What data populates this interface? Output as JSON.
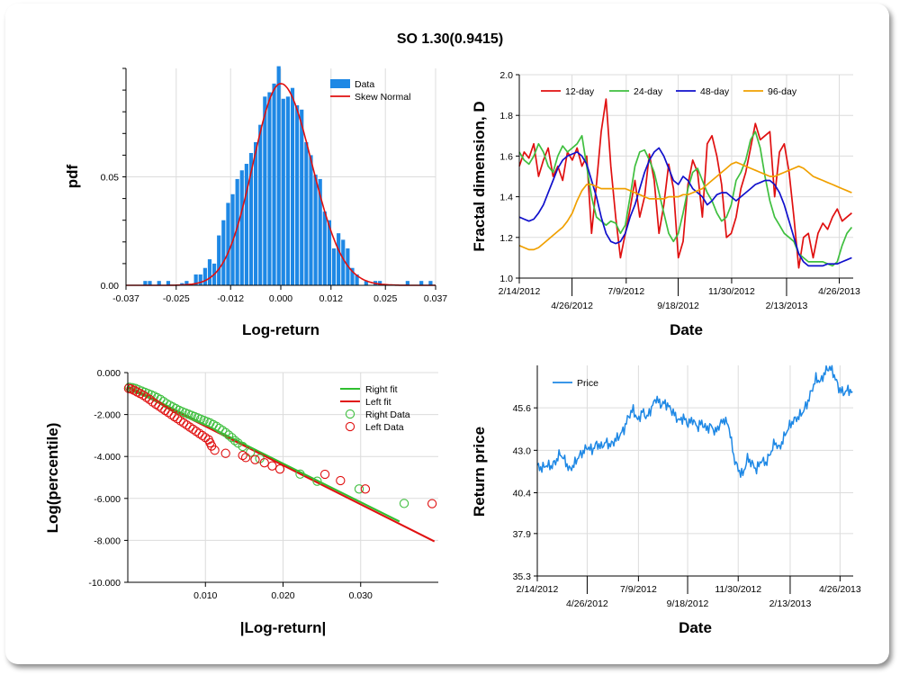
{
  "title": "SO 1.30(0.9415)",
  "chart_data": [
    {
      "id": "histogram",
      "type": "bar",
      "xlabel": "Log-return",
      "ylabel": "pdf",
      "xlim": [
        -0.037,
        0.037
      ],
      "ylim": [
        0,
        0.1
      ],
      "xticks": [
        -0.037,
        -0.025,
        -0.012,
        0.0,
        0.012,
        0.025,
        0.037
      ],
      "xtick_labels": [
        "-0.037",
        "-0.025",
        "-0.012",
        "0.000",
        "0.012",
        "0.025",
        "0.037"
      ],
      "yticks": [
        0,
        0.05
      ],
      "ytick_labels": [
        "0.00",
        "0.05"
      ],
      "legend": [
        "Data",
        "Skew Normal"
      ],
      "legend_position": "top-right",
      "bin_width": 0.0011,
      "bin_centers": [
        -0.0324,
        -0.0313,
        -0.0291,
        -0.0269,
        -0.0236,
        -0.0225,
        -0.0203,
        -0.0192,
        -0.0181,
        -0.017,
        -0.0159,
        -0.0148,
        -0.0137,
        -0.0126,
        -0.0115,
        -0.0104,
        -0.0093,
        -0.0082,
        -0.0071,
        -0.006,
        -0.0049,
        -0.0038,
        -0.0027,
        -0.0016,
        -0.0005,
        0.0006,
        0.0017,
        0.0028,
        0.0039,
        0.005,
        0.0061,
        0.0072,
        0.0083,
        0.0094,
        0.0105,
        0.0116,
        0.0127,
        0.0138,
        0.0149,
        0.016,
        0.0171,
        0.0182,
        0.0204,
        0.0226,
        0.0237,
        0.0303,
        0.0336,
        0.0358
      ],
      "values": [
        0.002,
        0.002,
        0.002,
        0.002,
        0.001,
        0.002,
        0.005,
        0.005,
        0.008,
        0.012,
        0.01,
        0.023,
        0.03,
        0.038,
        0.042,
        0.049,
        0.053,
        0.056,
        0.061,
        0.066,
        0.074,
        0.087,
        0.089,
        0.093,
        0.101,
        0.086,
        0.087,
        0.091,
        0.083,
        0.081,
        0.066,
        0.06,
        0.051,
        0.049,
        0.034,
        0.03,
        0.017,
        0.024,
        0.021,
        0.017,
        0.008,
        0.005,
        0.002,
        0.002,
        0.002,
        0.002,
        0.002,
        0.002
      ],
      "fit": {
        "name": "Skew Normal",
        "mode": 0.0,
        "peak": 0.093,
        "sigma_left": 0.0066,
        "sigma_right": 0.0074
      }
    },
    {
      "id": "fractal",
      "type": "line",
      "xlabel": "Date",
      "ylabel": "Fractal dimension, D",
      "ylim": [
        1.0,
        2.0
      ],
      "yticks": [
        1.0,
        1.2,
        1.4,
        1.6,
        1.8,
        2.0
      ],
      "ytick_labels": [
        "1.0",
        "1.2",
        "1.4",
        "1.6",
        "1.8",
        "2.0"
      ],
      "xlim": [
        "2012-02-14",
        "2013-05-15"
      ],
      "xticks": [
        "2012-02-14",
        "2012-04-26",
        "2012-07-09",
        "2012-09-18",
        "2012-11-30",
        "2013-02-13",
        "2013-04-26"
      ],
      "xtick_labels": [
        "2/14/2012",
        "4/26/2012",
        "7/9/2012",
        "9/18/2012",
        "11/30/2012",
        "2/13/2013",
        "4/26/2013"
      ],
      "legend_position": "top-left",
      "series": [
        {
          "name": "12-day",
          "color": "#e01010",
          "values": [
            1.55,
            1.62,
            1.59,
            1.66,
            1.5,
            1.58,
            1.64,
            1.5,
            1.55,
            1.48,
            1.62,
            1.58,
            1.64,
            1.55,
            1.6,
            1.22,
            1.46,
            1.72,
            1.88,
            1.55,
            1.3,
            1.1,
            1.22,
            1.34,
            1.48,
            1.3,
            1.4,
            1.61,
            1.48,
            1.22,
            1.36,
            1.56,
            1.44,
            1.1,
            1.18,
            1.46,
            1.58,
            1.52,
            1.3,
            1.66,
            1.7,
            1.6,
            1.46,
            1.2,
            1.22,
            1.3,
            1.44,
            1.52,
            1.64,
            1.76,
            1.68,
            1.7,
            1.72,
            1.4,
            1.62,
            1.66,
            1.52,
            1.3,
            1.05,
            1.2,
            1.22,
            1.1,
            1.22,
            1.27,
            1.24,
            1.3,
            1.34,
            1.28,
            1.3,
            1.32
          ]
        },
        {
          "name": "24-day",
          "color": "#3fbf3f",
          "values": [
            1.62,
            1.58,
            1.56,
            1.6,
            1.66,
            1.62,
            1.55,
            1.52,
            1.6,
            1.65,
            1.62,
            1.64,
            1.66,
            1.7,
            1.55,
            1.4,
            1.3,
            1.28,
            1.26,
            1.28,
            1.27,
            1.22,
            1.26,
            1.4,
            1.55,
            1.62,
            1.63,
            1.58,
            1.52,
            1.42,
            1.32,
            1.22,
            1.18,
            1.22,
            1.32,
            1.44,
            1.52,
            1.54,
            1.48,
            1.42,
            1.38,
            1.32,
            1.28,
            1.3,
            1.36,
            1.48,
            1.52,
            1.58,
            1.68,
            1.72,
            1.64,
            1.5,
            1.38,
            1.3,
            1.26,
            1.22,
            1.2,
            1.18,
            1.12,
            1.1,
            1.08,
            1.08,
            1.08,
            1.08,
            1.07,
            1.06,
            1.08,
            1.16,
            1.22,
            1.25
          ]
        },
        {
          "name": "48-day",
          "color": "#1010cc",
          "values": [
            1.3,
            1.29,
            1.28,
            1.29,
            1.32,
            1.36,
            1.42,
            1.48,
            1.54,
            1.58,
            1.6,
            1.61,
            1.62,
            1.6,
            1.56,
            1.48,
            1.4,
            1.3,
            1.22,
            1.18,
            1.17,
            1.18,
            1.22,
            1.3,
            1.36,
            1.44,
            1.52,
            1.58,
            1.62,
            1.64,
            1.6,
            1.54,
            1.48,
            1.46,
            1.5,
            1.48,
            1.44,
            1.42,
            1.4,
            1.36,
            1.38,
            1.41,
            1.42,
            1.42,
            1.4,
            1.38,
            1.4,
            1.42,
            1.44,
            1.46,
            1.47,
            1.48,
            1.48,
            1.46,
            1.42,
            1.36,
            1.28,
            1.2,
            1.12,
            1.08,
            1.06,
            1.06,
            1.06,
            1.06,
            1.07,
            1.07,
            1.07,
            1.08,
            1.09,
            1.1
          ]
        },
        {
          "name": "96-day",
          "color": "#f0a000",
          "values": [
            1.16,
            1.15,
            1.14,
            1.14,
            1.15,
            1.17,
            1.19,
            1.21,
            1.23,
            1.25,
            1.28,
            1.32,
            1.38,
            1.43,
            1.46,
            1.46,
            1.45,
            1.44,
            1.44,
            1.44,
            1.44,
            1.44,
            1.44,
            1.43,
            1.42,
            1.41,
            1.4,
            1.39,
            1.39,
            1.39,
            1.39,
            1.4,
            1.4,
            1.4,
            1.41,
            1.41,
            1.42,
            1.43,
            1.44,
            1.46,
            1.48,
            1.5,
            1.52,
            1.54,
            1.56,
            1.57,
            1.56,
            1.55,
            1.54,
            1.53,
            1.52,
            1.51,
            1.5,
            1.5,
            1.51,
            1.52,
            1.53,
            1.54,
            1.55,
            1.54,
            1.52,
            1.5,
            1.49,
            1.48,
            1.47,
            1.46,
            1.45,
            1.44,
            1.43,
            1.42
          ]
        }
      ]
    },
    {
      "id": "tail",
      "type": "scatter",
      "xlabel": "|Log-return|",
      "ylabel": "Log(percentile)",
      "xlim": [
        0.0,
        0.04
      ],
      "ylim": [
        -10.0,
        0.0
      ],
      "xticks": [
        0.01,
        0.02,
        0.03
      ],
      "xtick_labels": [
        "0.010",
        "0.020",
        "0.030"
      ],
      "yticks": [
        0,
        -2,
        -4,
        -6,
        -8,
        -10
      ],
      "ytick_labels": [
        "0.000",
        "-2.000",
        "-4.000",
        "-6.000",
        "-8.000",
        "-10.000"
      ],
      "legend": [
        "Right fit",
        "Left fit",
        "Right Data",
        "Left Data"
      ],
      "legend_position": "top-right",
      "right_fit": {
        "name": "Right fit",
        "color": "#2fbf2f",
        "x": [
          0.0,
          0.035
        ],
        "y": [
          -0.65,
          -7.1
        ]
      },
      "left_fit": {
        "name": "Left fit",
        "color": "#e01010",
        "x": [
          0.0,
          0.0395
        ],
        "y": [
          -0.7,
          -8.05
        ]
      },
      "right_data": {
        "name": "Right Data",
        "color": "#3fbf3f",
        "x": [
          0.0002,
          0.0006,
          0.001,
          0.0014,
          0.0018,
          0.0022,
          0.0026,
          0.003,
          0.0034,
          0.0038,
          0.0042,
          0.0046,
          0.005,
          0.0054,
          0.0058,
          0.0062,
          0.0066,
          0.007,
          0.0074,
          0.0078,
          0.0082,
          0.0086,
          0.009,
          0.0094,
          0.0098,
          0.0102,
          0.0106,
          0.011,
          0.0114,
          0.0118,
          0.0122,
          0.0126,
          0.013,
          0.0134,
          0.0138,
          0.0142,
          0.0148,
          0.0158,
          0.017,
          0.0222,
          0.0244,
          0.0298,
          0.0356
        ],
        "y": [
          -0.7,
          -0.72,
          -0.76,
          -0.82,
          -0.88,
          -0.94,
          -1.0,
          -1.06,
          -1.12,
          -1.2,
          -1.28,
          -1.38,
          -1.48,
          -1.56,
          -1.64,
          -1.72,
          -1.8,
          -1.86,
          -1.92,
          -1.98,
          -2.04,
          -2.1,
          -2.16,
          -2.22,
          -2.28,
          -2.34,
          -2.4,
          -2.48,
          -2.56,
          -2.66,
          -2.76,
          -2.86,
          -2.98,
          -3.1,
          -3.24,
          -3.36,
          -3.52,
          -3.8,
          -4.1,
          -4.84,
          -5.18,
          -5.55,
          -6.24
        ]
      },
      "left_data": {
        "name": "Left Data",
        "color": "#e01010",
        "x": [
          0.0001,
          0.0004,
          0.0008,
          0.0012,
          0.0016,
          0.002,
          0.0024,
          0.0028,
          0.0032,
          0.0036,
          0.004,
          0.0044,
          0.0048,
          0.0052,
          0.0056,
          0.006,
          0.0064,
          0.0068,
          0.0072,
          0.0076,
          0.008,
          0.0084,
          0.0088,
          0.0092,
          0.0096,
          0.01,
          0.0104,
          0.0106,
          0.0108,
          0.0112,
          0.0126,
          0.0148,
          0.0152,
          0.0164,
          0.0176,
          0.0186,
          0.0196,
          0.0254,
          0.0274,
          0.0306,
          0.0392
        ],
        "y": [
          -0.75,
          -0.78,
          -0.84,
          -0.92,
          -1.0,
          -1.08,
          -1.18,
          -1.28,
          -1.4,
          -1.5,
          -1.6,
          -1.7,
          -1.8,
          -1.9,
          -2.0,
          -2.1,
          -2.2,
          -2.3,
          -2.4,
          -2.5,
          -2.6,
          -2.7,
          -2.8,
          -2.9,
          -3.0,
          -3.1,
          -3.2,
          -3.35,
          -3.5,
          -3.7,
          -3.85,
          -3.95,
          -4.05,
          -4.15,
          -4.3,
          -4.45,
          -4.6,
          -4.85,
          -5.15,
          -5.55,
          -6.25
        ]
      }
    },
    {
      "id": "price",
      "type": "line",
      "xlabel": "Date",
      "ylabel": "Return price",
      "ylim": [
        35.3,
        48.2
      ],
      "yticks": [
        35.3,
        37.9,
        40.4,
        43.0,
        45.6
      ],
      "ytick_labels": [
        "35.3",
        "37.9",
        "40.4",
        "43.0",
        "45.6"
      ],
      "xlim": [
        "2012-02-14",
        "2013-05-15"
      ],
      "xticks": [
        "2012-02-14",
        "2012-04-26",
        "2012-07-09",
        "2012-09-18",
        "2012-11-30",
        "2013-02-13",
        "2013-04-26"
      ],
      "xtick_labels": [
        "2/14/2012",
        "4/26/2012",
        "7/9/2012",
        "9/18/2012",
        "11/30/2012",
        "2/13/2013",
        "4/26/2013"
      ],
      "legend_position": "top-left",
      "series": [
        {
          "name": "Price",
          "color": "#1e88e5",
          "values": [
            42.0,
            41.9,
            42.1,
            42.0,
            42.3,
            42.8,
            42.4,
            41.8,
            42.1,
            42.6,
            42.9,
            43.2,
            43.0,
            43.4,
            43.2,
            43.5,
            43.3,
            43.6,
            43.9,
            44.3,
            45.1,
            45.5,
            44.8,
            45.4,
            45.0,
            45.6,
            46.2,
            45.8,
            45.9,
            45.6,
            45.2,
            44.8,
            45.0,
            44.6,
            44.9,
            44.4,
            44.7,
            44.3,
            44.5,
            44.1,
            44.6,
            44.9,
            44.4,
            42.6,
            41.8,
            41.5,
            42.5,
            42.2,
            41.8,
            42.4,
            42.2,
            42.8,
            43.5,
            43.1,
            43.8,
            44.4,
            44.8,
            45.0,
            45.3,
            45.8,
            46.6,
            47.4,
            47.2,
            47.8,
            48.1,
            47.6,
            46.8,
            46.5,
            46.7,
            46.6
          ]
        }
      ]
    }
  ]
}
